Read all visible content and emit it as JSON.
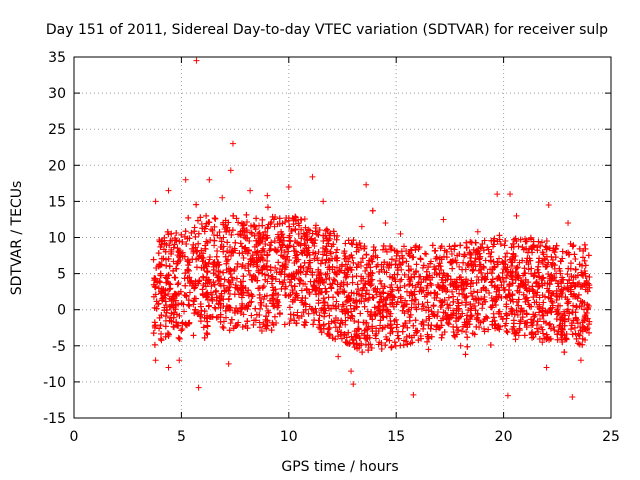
{
  "chart_data": {
    "type": "scatter",
    "title": "Day 151 of 2011, Sidereal Day-to-day VTEC variation (SDTVAR) for receiver sulp",
    "xlabel": "GPS time / hours",
    "ylabel": "SDTVAR / TECUs",
    "xlim": [
      0,
      25
    ],
    "ylim": [
      -15,
      35
    ],
    "xticks": [
      0,
      5,
      10,
      15,
      20,
      25
    ],
    "yticks": [
      -15,
      -10,
      -5,
      0,
      5,
      10,
      15,
      20,
      25,
      30,
      35
    ],
    "grid": true,
    "marker": "+",
    "color": "#ff0000",
    "series": [
      {
        "name": "SDTVAR",
        "x_range": [
          3.7,
          24.0
        ],
        "band": [
          {
            "x": 3.7,
            "low": -5,
            "high": 9,
            "center": 3
          },
          {
            "x": 5.0,
            "low": -4,
            "high": 13,
            "center": 4.5
          },
          {
            "x": 7.0,
            "low": -3,
            "high": 13,
            "center": 5
          },
          {
            "x": 9.0,
            "low": -3,
            "high": 13,
            "center": 5.5
          },
          {
            "x": 10.5,
            "low": -2,
            "high": 13,
            "center": 5.5
          },
          {
            "x": 12.0,
            "low": -4,
            "high": 11,
            "center": 4
          },
          {
            "x": 13.5,
            "low": -6,
            "high": 9,
            "center": 2
          },
          {
            "x": 15.5,
            "low": -5,
            "high": 9,
            "center": 2
          },
          {
            "x": 17.5,
            "low": -4,
            "high": 9,
            "center": 2.5
          },
          {
            "x": 19.5,
            "low": -3,
            "high": 10,
            "center": 3
          },
          {
            "x": 21.5,
            "low": -4,
            "high": 10,
            "center": 3
          },
          {
            "x": 24.0,
            "low": -5,
            "high": 9,
            "center": 2.5
          }
        ],
        "outliers": [
          {
            "x": 5.7,
            "y": 34.5
          },
          {
            "x": 7.4,
            "y": 23
          },
          {
            "x": 7.3,
            "y": 19.3
          },
          {
            "x": 5.8,
            "y": -10.8
          },
          {
            "x": 13.0,
            "y": -10.3
          },
          {
            "x": 13.6,
            "y": 17.3
          },
          {
            "x": 15.8,
            "y": -11.8
          },
          {
            "x": 20.2,
            "y": -11.9
          },
          {
            "x": 23.2,
            "y": -12.1
          },
          {
            "x": 3.8,
            "y": 15
          },
          {
            "x": 4.4,
            "y": 16.5
          },
          {
            "x": 5.2,
            "y": 18
          },
          {
            "x": 6.3,
            "y": 18
          },
          {
            "x": 8.2,
            "y": 16.5
          },
          {
            "x": 10.0,
            "y": 17
          },
          {
            "x": 11.1,
            "y": 18.4
          },
          {
            "x": 14.5,
            "y": 12
          },
          {
            "x": 19.7,
            "y": 16
          },
          {
            "x": 20.3,
            "y": 16
          },
          {
            "x": 22.1,
            "y": 14.5
          },
          {
            "x": 3.8,
            "y": -7
          },
          {
            "x": 4.4,
            "y": -8
          },
          {
            "x": 4.9,
            "y": -7
          },
          {
            "x": 7.2,
            "y": -7.5
          },
          {
            "x": 12.9,
            "y": -8.5
          },
          {
            "x": 22.0,
            "y": -8
          },
          {
            "x": 23.6,
            "y": -7
          },
          {
            "x": 21.8,
            "y": -4.5
          },
          {
            "x": 16.5,
            "y": -5.5
          },
          {
            "x": 18.0,
            "y": -5
          },
          {
            "x": 12.3,
            "y": -6.5
          },
          {
            "x": 23.0,
            "y": 12
          },
          {
            "x": 20.6,
            "y": 13
          },
          {
            "x": 17.2,
            "y": 12.5
          },
          {
            "x": 6.9,
            "y": 15.5
          },
          {
            "x": 9.0,
            "y": 15.8
          },
          {
            "x": 11.6,
            "y": 15
          },
          {
            "x": 13.4,
            "y": 11.5
          },
          {
            "x": 15.2,
            "y": 10.5
          },
          {
            "x": 18.8,
            "y": 10.8
          }
        ]
      }
    ]
  }
}
